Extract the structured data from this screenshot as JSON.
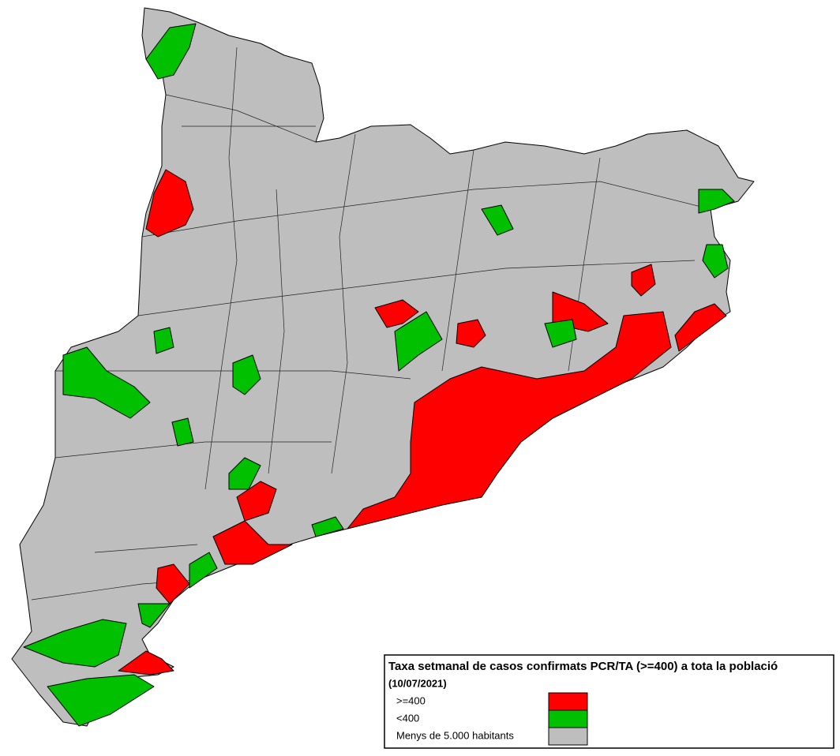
{
  "legend": {
    "title": "Taxa setmanal de casos confirmats PCR/TA (>=400) a tota la població",
    "subtitle": "(10/07/2021)",
    "items": [
      {
        "label": ">=400",
        "color": "#ff0000"
      },
      {
        "label": "<400",
        "color": "#00c000"
      },
      {
        "label": "Menys de 5.000 habitants",
        "color": "#bebebe"
      }
    ]
  }
}
